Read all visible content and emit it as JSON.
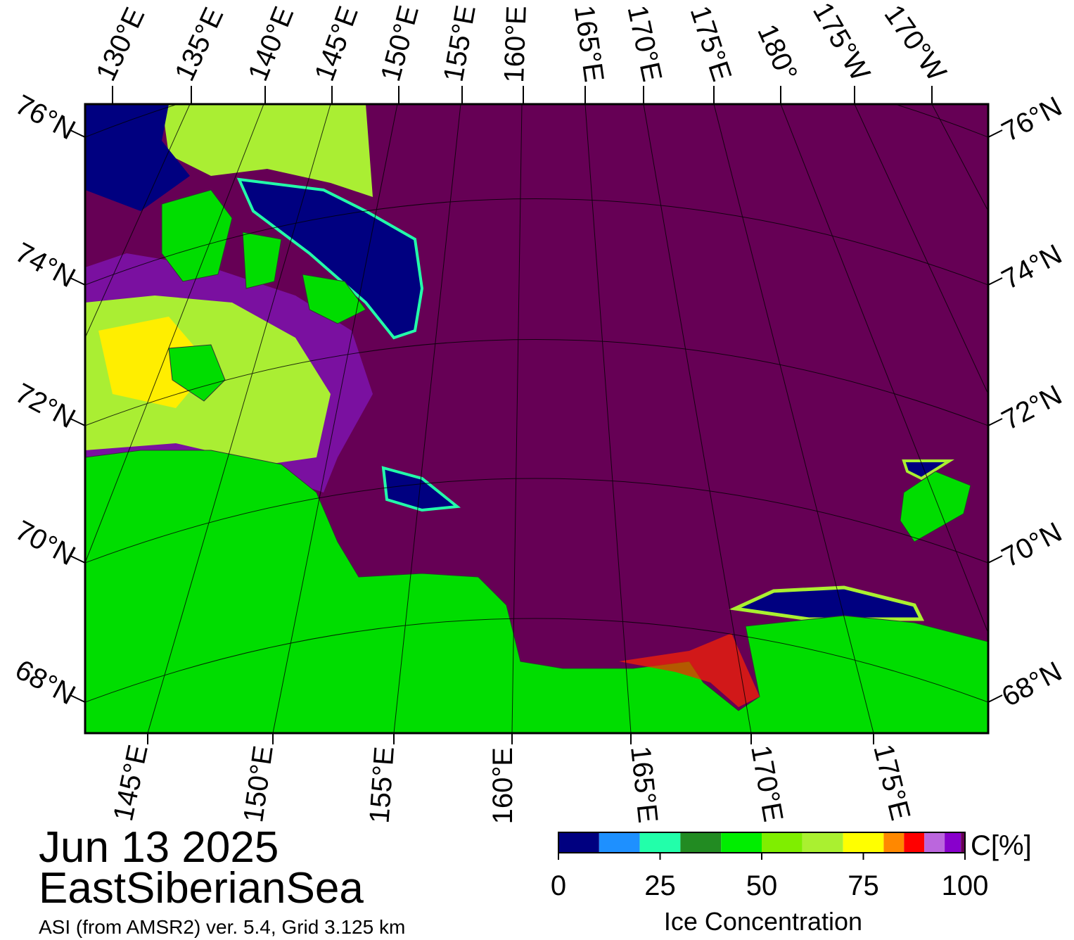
{
  "date": "Jun 13 2025",
  "region": "EastSiberianSea",
  "source": "ASI (from AMSR2) ver. 5.4,  Grid 3.125 km",
  "top_labels": [
    "130°E",
    "135°E",
    "140°E",
    "145°E",
    "150°E",
    "155°E",
    "160°E",
    "165°E",
    "170°E",
    "175°E",
    "180°",
    "175°W",
    "170°W"
  ],
  "left_labels": [
    "76°N",
    "74°N",
    "72°N",
    "70°N",
    "68°N"
  ],
  "right_labels": [
    "76°N",
    "74°N",
    "72°N",
    "70°N",
    "68°N"
  ],
  "bottom_labels": [
    "145°E",
    "150°E",
    "155°E",
    "160°E",
    "165°E",
    "170°E",
    "175°E"
  ],
  "colorbar": {
    "unit": "C[%]",
    "title": "Ice Concentration",
    "range": [
      0,
      100
    ],
    "ticks": [
      0,
      25,
      50,
      75,
      100
    ],
    "bounds": [
      0,
      10,
      20,
      30,
      40,
      50,
      60,
      70,
      80,
      85,
      90,
      95,
      99,
      100
    ],
    "colors": [
      "#000080",
      "#1e90ff",
      "#22ffaa",
      "#228b22",
      "#00ee00",
      "#7fee00",
      "#aaf030",
      "#ffff00",
      "#ff8800",
      "#ff0000",
      "#bb66dd",
      "#8800cc",
      "#660055"
    ]
  }
}
